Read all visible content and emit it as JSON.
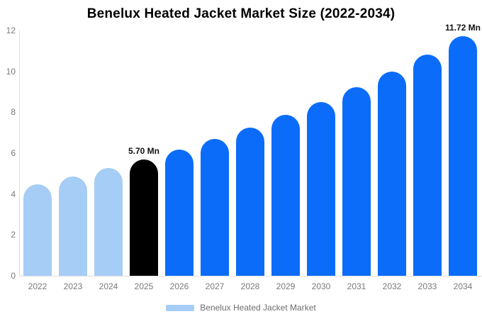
{
  "title": "Benelux Heated Jacket Market Size (2022-2034)",
  "colors": {
    "past_bar": "#A6CDF5",
    "base_year_bar": "#000000",
    "forecast_bar": "#0B6CFA",
    "axis_line": "#DDDDDD",
    "tick_text": "#7A7A7A",
    "annotation_text": "#111111",
    "legend_text": "#6E6E6E",
    "title_text": "#000000"
  },
  "chart_data": {
    "type": "bar",
    "title": "Benelux Heated Jacket Market Size (2022-2034)",
    "value_unit": "Mn",
    "categories": [
      "2022",
      "2023",
      "2024",
      "2025",
      "2026",
      "2027",
      "2028",
      "2029",
      "2030",
      "2031",
      "2032",
      "2033",
      "2034"
    ],
    "values": [
      4.48,
      4.86,
      5.26,
      5.7,
      6.18,
      6.69,
      7.25,
      7.86,
      8.51,
      9.22,
      9.99,
      10.82,
      11.72
    ],
    "bar_roles": [
      "past_bar",
      "past_bar",
      "past_bar",
      "base_year_bar",
      "forecast_bar",
      "forecast_bar",
      "forecast_bar",
      "forecast_bar",
      "forecast_bar",
      "forecast_bar",
      "forecast_bar",
      "forecast_bar",
      "forecast_bar"
    ],
    "ylim": [
      0,
      12
    ],
    "yticks": [
      0,
      2,
      4,
      6,
      8,
      10,
      12
    ],
    "grid": false,
    "annotations": [
      {
        "category": "2025",
        "text": "5.70 Mn"
      },
      {
        "category": "2034",
        "text": "11.72 Mn"
      }
    ],
    "legend": {
      "position": "bottom",
      "items": [
        {
          "label": "Benelux Heated Jacket Market",
          "color_role": "past_bar"
        }
      ]
    }
  }
}
